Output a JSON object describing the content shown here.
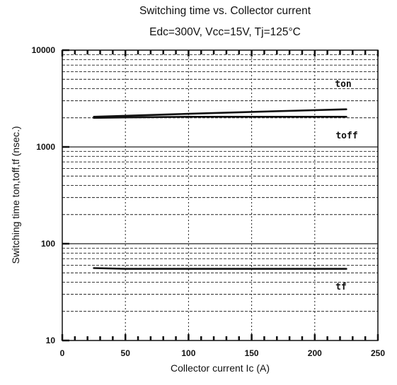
{
  "chart_data": {
    "type": "line",
    "title": "Switching time vs. Collector current",
    "subtitle": "Edc=300V, Vcc=15V, Tj=125°C",
    "xlabel": "Collector current  Ic (A)",
    "ylabel": "Switching time  ton,toff,tf (nsec.)",
    "xlim": [
      0,
      250
    ],
    "ylim": [
      10,
      10000
    ],
    "yscale": "log",
    "x_ticks": [
      "0",
      "50",
      "100",
      "150",
      "200",
      "250"
    ],
    "y_ticks": [
      "10",
      "100",
      "1000",
      "10000"
    ],
    "grid": true,
    "series": [
      {
        "name": "ton",
        "x": [
          25,
          50,
          100,
          150,
          200,
          225
        ],
        "values": [
          2050,
          2100,
          2200,
          2300,
          2400,
          2450
        ]
      },
      {
        "name": "toff",
        "x": [
          25,
          50,
          100,
          150,
          200,
          225
        ],
        "values": [
          2000,
          2020,
          2050,
          2050,
          2050,
          2050
        ]
      },
      {
        "name": "tf",
        "x": [
          25,
          50,
          100,
          150,
          200,
          225
        ],
        "values": [
          56,
          55,
          55,
          55,
          55,
          55
        ]
      }
    ]
  }
}
